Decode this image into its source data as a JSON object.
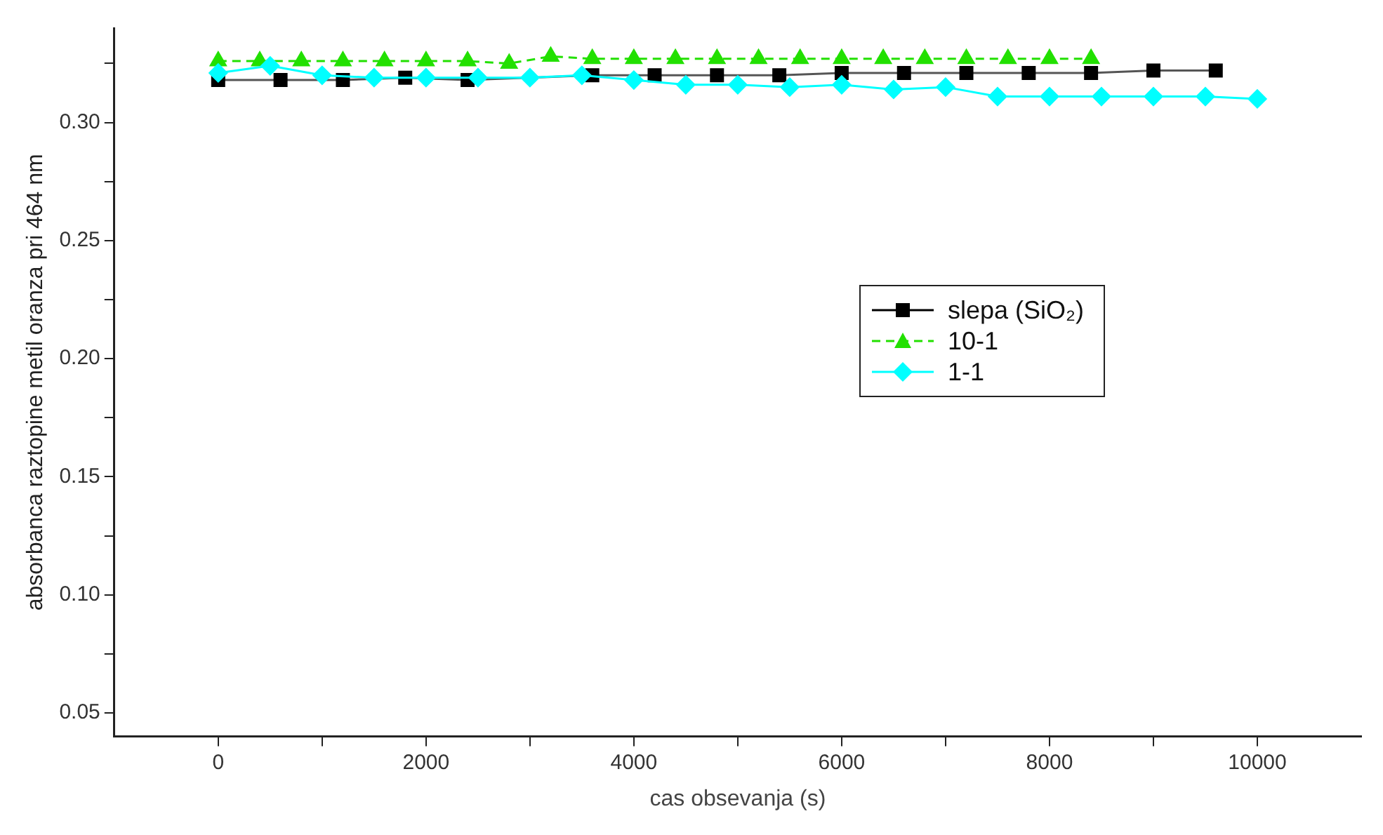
{
  "chart_data": {
    "type": "line",
    "xlabel": "cas obsevanja (s)",
    "ylabel": "absorbanca raztopine metil oranza pri 464 nm",
    "xlim": [
      -1000,
      11000
    ],
    "xticks": [
      0,
      {
        "value": 1000,
        "label": null
      },
      2000,
      {
        "value": 3000,
        "label": null
      },
      4000,
      {
        "value": 5000,
        "label": null
      },
      6000,
      {
        "value": 7000,
        "label": null
      },
      8000,
      {
        "value": 9000,
        "label": null
      },
      10000
    ],
    "ylim": [
      0.04,
      0.34
    ],
    "yticks": [
      0.05,
      {
        "value": 0.075,
        "label": null
      },
      "0.10",
      {
        "value": 0.125,
        "label": null
      },
      0.15,
      {
        "value": 0.175,
        "label": null
      },
      "0.20",
      {
        "value": 0.225,
        "label": null
      },
      0.25,
      {
        "value": 0.275,
        "label": null
      },
      "0.30",
      {
        "value": 0.325,
        "label": null
      }
    ],
    "grid": false,
    "legend": "right",
    "series": [
      {
        "name": "slepa (SiO₂)",
        "color": "#000000",
        "marker": "square",
        "line_style": "solid",
        "x": [
          0,
          600,
          1200,
          1800,
          2400,
          3000,
          3600,
          4200,
          4800,
          5400,
          6000,
          6600,
          7200,
          7800,
          8400,
          9000,
          9600
        ],
        "values": [
          0.318,
          0.318,
          0.318,
          0.319,
          0.318,
          null,
          0.32,
          0.32,
          0.32,
          0.32,
          0.321,
          0.321,
          0.321,
          0.321,
          0.321,
          0.322,
          0.322
        ]
      },
      {
        "name": "10-1",
        "color": "#22e000",
        "marker": "triangle",
        "line_style": "dashed",
        "x": [
          0,
          400,
          800,
          1200,
          1600,
          2000,
          2400,
          2800,
          3200,
          3600,
          4000,
          4400,
          4800,
          5200,
          5600,
          6000,
          6400,
          6800,
          7200,
          7600,
          8000,
          8400
        ],
        "values": [
          0.326,
          0.326,
          0.326,
          0.326,
          0.326,
          0.326,
          0.326,
          0.325,
          0.328,
          0.327,
          0.327,
          0.327,
          0.327,
          0.327,
          0.327,
          0.327,
          0.327,
          0.327,
          0.327,
          0.327,
          0.327,
          0.327
        ]
      },
      {
        "name": "1-1",
        "color": "#00ffff",
        "marker": "diamond",
        "line_style": "solid",
        "x": [
          0,
          500,
          1000,
          1500,
          2000,
          2500,
          3000,
          3500,
          4000,
          4500,
          5000,
          5500,
          6000,
          6500,
          7000,
          7500,
          8000,
          8500,
          9000,
          9500,
          10000
        ],
        "values": [
          0.321,
          0.324,
          0.32,
          0.319,
          0.319,
          0.319,
          0.319,
          0.32,
          0.318,
          0.316,
          0.316,
          0.315,
          0.316,
          0.314,
          0.315,
          0.311,
          0.311,
          0.311,
          0.311,
          0.311,
          0.31
        ]
      }
    ]
  }
}
